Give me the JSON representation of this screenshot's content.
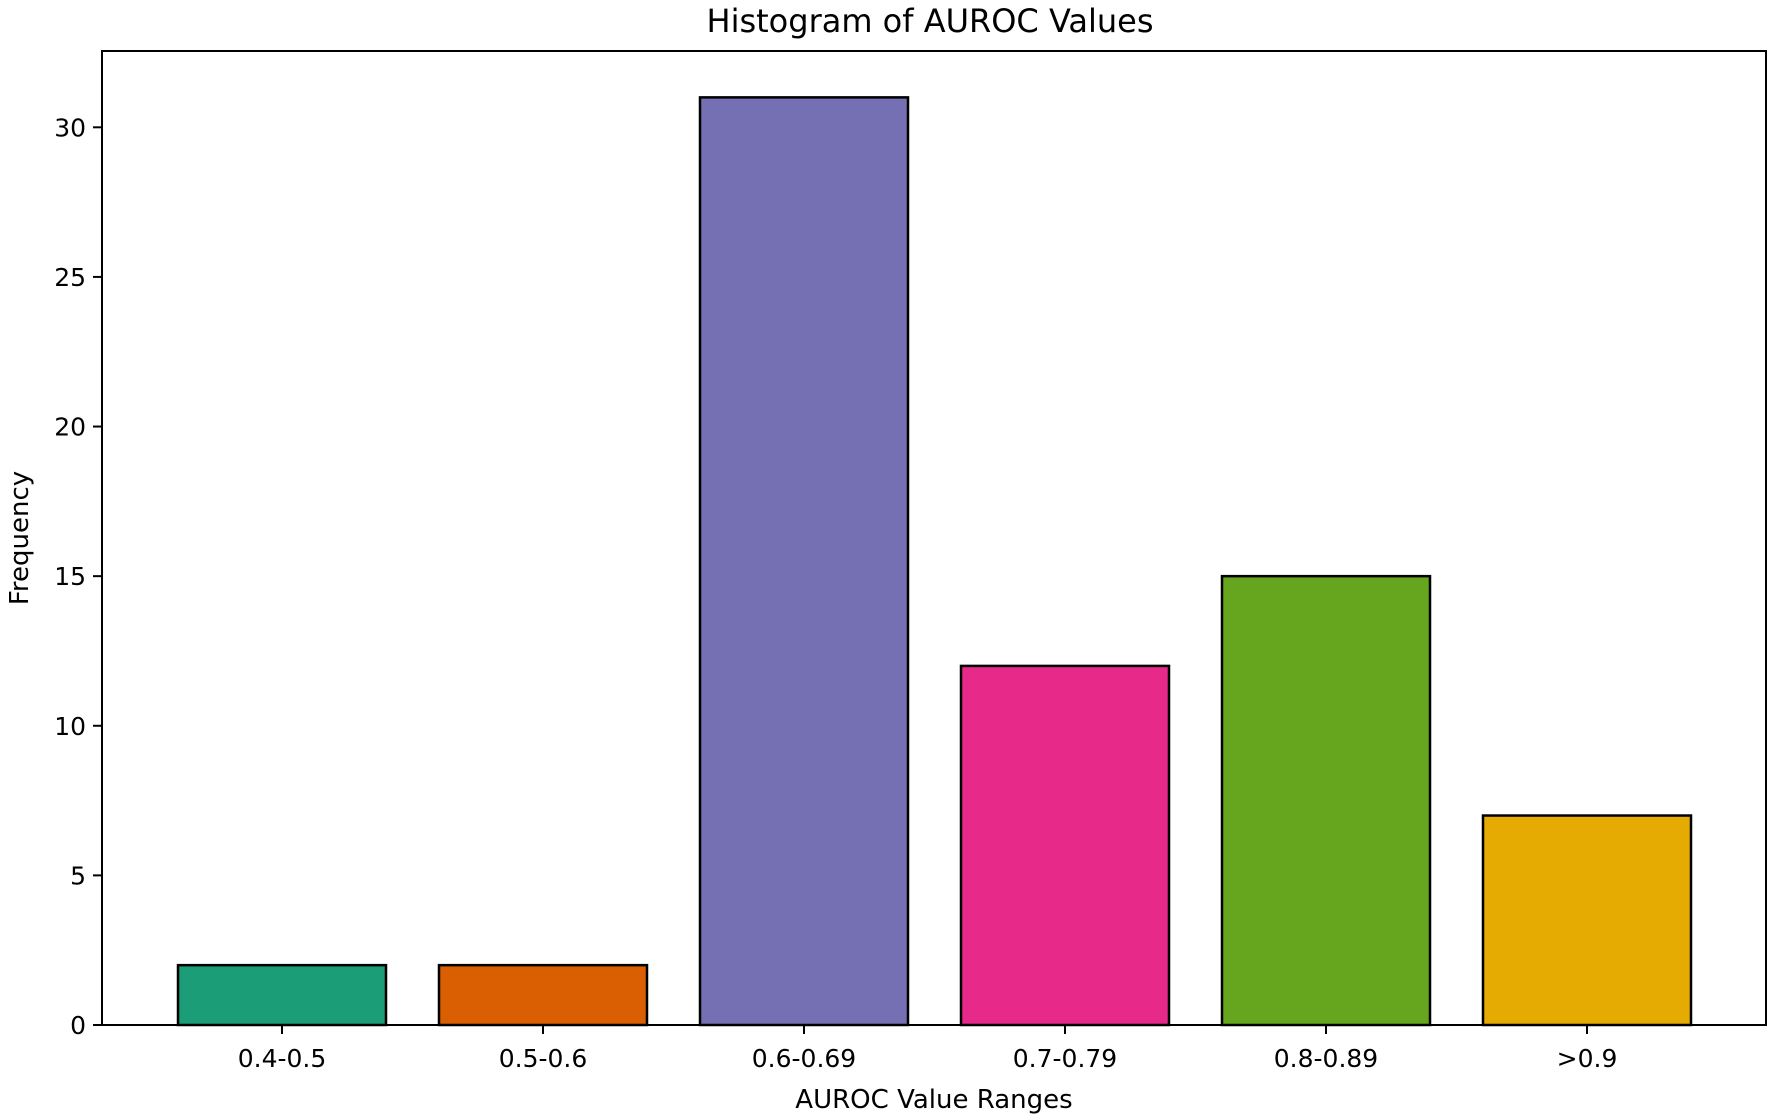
{
  "chart_data": {
    "type": "bar",
    "title": "Histogram of AUROC Values",
    "xlabel": "AUROC Value Ranges",
    "ylabel": "Frequency",
    "categories": [
      "0.4-0.5",
      "0.5-0.6",
      "0.6-0.69",
      "0.7-0.79",
      "0.8-0.89",
      ">0.9"
    ],
    "values": [
      2,
      2,
      31,
      12,
      15,
      7
    ],
    "colors": [
      "#1b9e77",
      "#d95f02",
      "#7570b3",
      "#e7298a",
      "#66a61e",
      "#e6ab02"
    ],
    "ylim": [
      0,
      32.55
    ],
    "yticks": [
      0,
      5,
      10,
      15,
      20,
      25,
      30
    ],
    "grid": false,
    "legend": "none"
  }
}
